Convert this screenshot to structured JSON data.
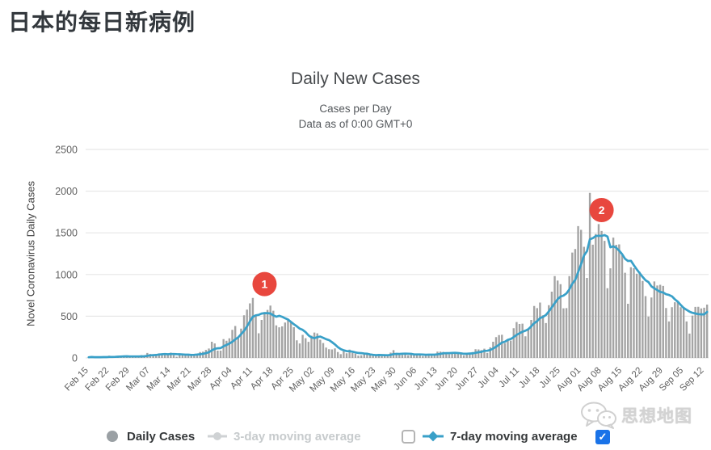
{
  "header": {
    "title": "日本的每日新病例"
  },
  "chart": {
    "title": "Daily New Cases",
    "subtitle1": "Cases per Day",
    "subtitle2": "Data as of 0:00 GMT+0",
    "ylabel": "Novel Coronavirus Daily Cases"
  },
  "legend": {
    "daily_cases": "Daily Cases",
    "ma3": "3-day moving average",
    "ma7": "7-day moving average",
    "ma7_checkbox_state": "unchecked",
    "extra_checkbox_state": "checked",
    "check_glyph": "✓"
  },
  "watermark": {
    "text": "思想地图",
    "icon": "wechat-icon"
  },
  "chart_data": {
    "type": "bar",
    "title": "Daily New Cases",
    "subtitle": [
      "Cases per Day",
      "Data as of 0:00 GMT+0"
    ],
    "ylabel": "Novel Coronavirus Daily Cases",
    "xlabel": "",
    "ylim": [
      0,
      2500
    ],
    "y_ticks": [
      0,
      500,
      1000,
      1500,
      2000,
      2500
    ],
    "grid": "horizontal",
    "legend_position": "bottom",
    "x_start": "Feb 15",
    "x_end": "Sep 13",
    "x_tick_every": 7,
    "x_tick_labels": [
      "Feb 15",
      "Feb 22",
      "Feb 29",
      "Mar 07",
      "Mar 14",
      "Mar 21",
      "Mar 28",
      "Apr 04",
      "Apr 11",
      "Apr 18",
      "Apr 25",
      "May 02",
      "May 09",
      "May 16",
      "May 23",
      "May 30",
      "Jun 06",
      "Jun 13",
      "Jun 20",
      "Jun 27",
      "Jul 04",
      "Jul 11",
      "Jul 18",
      "Jul 25",
      "Aug 01",
      "Aug 08",
      "Aug 15",
      "Aug 22",
      "Aug 29",
      "Sep 05",
      "Sep 12"
    ],
    "colors": {
      "bar": "#a4a4a4",
      "line": "#39a0c8",
      "marker": "#e8473e",
      "grid": "#e7e7e7"
    },
    "series": [
      {
        "name": "Daily Cases",
        "type": "bar",
        "values": [
          8,
          13,
          6,
          8,
          9,
          12,
          9,
          27,
          12,
          12,
          22,
          21,
          24,
          20,
          9,
          15,
          14,
          16,
          33,
          31,
          59,
          47,
          33,
          26,
          54,
          52,
          55,
          40,
          63,
          33,
          15,
          44,
          41,
          36,
          39,
          34,
          47,
          39,
          71,
          75,
          96,
          112,
          194,
          173,
          87,
          87,
          225,
          206,
          235,
          336,
          383,
          252,
          351,
          511,
          579,
          654,
          720,
          507,
          296,
          455,
          549,
          576,
          628,
          566,
          390,
          367,
          378,
          423,
          469,
          434,
          368,
          210,
          173,
          276,
          236,
          193,
          266,
          304,
          295,
          218,
          178,
          123,
          105,
          102,
          114,
          70,
          45,
          79,
          55,
          100,
          60,
          50,
          27,
          31,
          43,
          42,
          37,
          26,
          26,
          42,
          21,
          37,
          35,
          63,
          93,
          47,
          35,
          37,
          50,
          31,
          47,
          46,
          46,
          38,
          21,
          33,
          41,
          45,
          46,
          75,
          76,
          73,
          45,
          43,
          56,
          58,
          57,
          56,
          30,
          56,
          54,
          71,
          105,
          102,
          93,
          110,
          59,
          127,
          194,
          250,
          274,
          277,
          176,
          212,
          207,
          357,
          430,
          407,
          411,
          260,
          334,
          455,
          623,
          597,
          664,
          511,
          418,
          632,
          795,
          981,
          927,
          885,
          595,
          597,
          981,
          1264,
          1305,
          1580,
          1536,
          1332,
          959,
          1979,
          1358,
          1486,
          1605,
          1522,
          1404,
          836,
          1075,
          1443,
          1357,
          1361,
          1232,
          1021,
          649,
          1087,
          1076,
          1010,
          1032,
          922,
          741,
          495,
          725,
          917,
          868,
          877,
          863,
          598,
          437,
          609,
          668,
          669,
          608,
          605,
          437,
          292,
          508,
          611,
          612,
          594,
          602,
          640
        ]
      },
      {
        "name": "3-day moving average",
        "type": "line",
        "enabled": false
      },
      {
        "name": "7-day moving average",
        "type": "line",
        "enabled": true,
        "derived_from": "7-day moving average of Daily Cases"
      }
    ],
    "markers": [
      {
        "label": "1",
        "day_index": 60,
        "value": 885
      },
      {
        "label": "2",
        "day_index": 175,
        "value": 1773
      }
    ]
  }
}
